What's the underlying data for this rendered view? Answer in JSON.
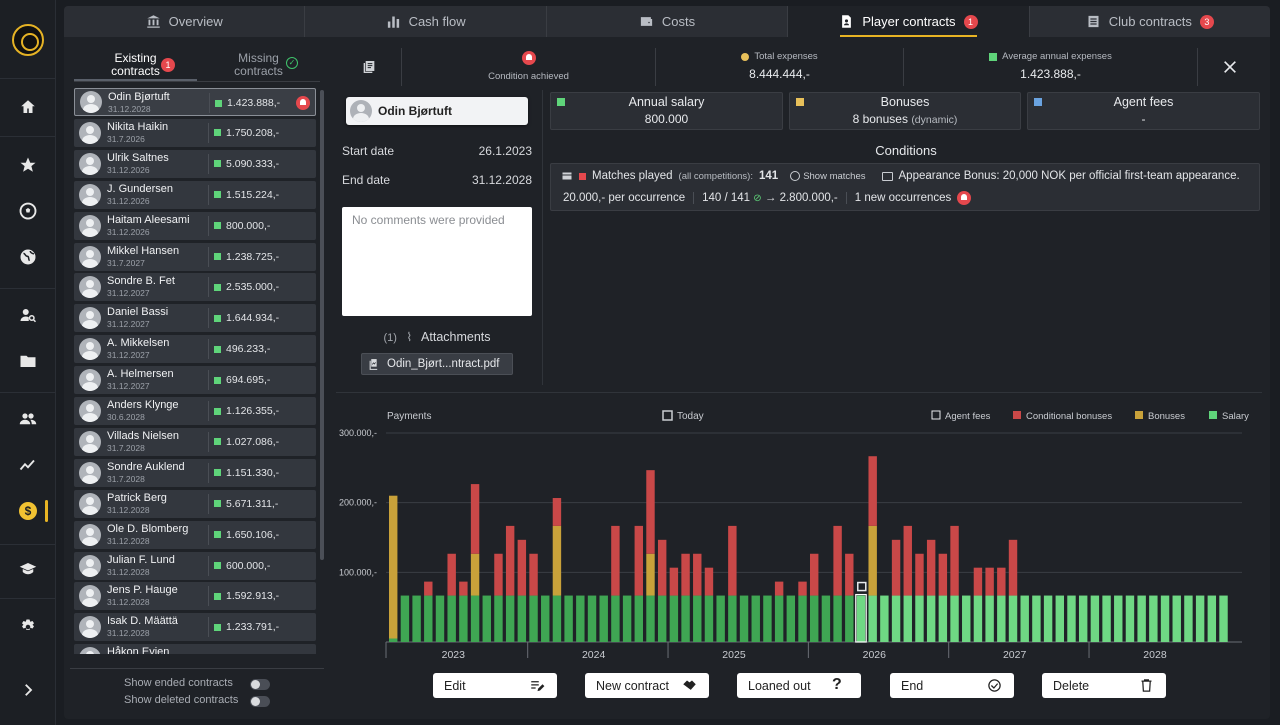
{
  "tabs": [
    {
      "label": "Overview"
    },
    {
      "label": "Cash flow"
    },
    {
      "label": "Costs"
    },
    {
      "label": "Player contracts",
      "badge": "1"
    },
    {
      "label": "Club contracts",
      "badge": "3"
    }
  ],
  "subtabs": {
    "existing": "Existing\ncontracts",
    "existing_badge": "1",
    "missing": "Missing\ncontracts"
  },
  "players": [
    {
      "name": "Odin Bjørtuft",
      "date": "31.12.2028",
      "value": "1.423.888,-"
    },
    {
      "name": "Nikita Haikin",
      "date": "31.7.2026",
      "value": "1.750.208,-"
    },
    {
      "name": "Ulrik Saltnes",
      "date": "31.12.2026",
      "value": "5.090.333,-"
    },
    {
      "name": "J. Gundersen",
      "date": "31.12.2026",
      "value": "1.515.224,-"
    },
    {
      "name": "Haitam Aleesami",
      "date": "31.12.2026",
      "value": "800.000,-"
    },
    {
      "name": "Mikkel Hansen",
      "date": "31.7.2027",
      "value": "1.238.725,-"
    },
    {
      "name": "Sondre B. Fet",
      "date": "31.12.2027",
      "value": "2.535.000,-"
    },
    {
      "name": "Daniel Bassi",
      "date": "31.12.2027",
      "value": "1.644.934,-"
    },
    {
      "name": "A. Mikkelsen",
      "date": "31.12.2027",
      "value": "496.233,-"
    },
    {
      "name": "A. Helmersen",
      "date": "31.12.2027",
      "value": "694.695,-"
    },
    {
      "name": "Anders Klynge",
      "date": "30.6.2028",
      "value": "1.126.355,-"
    },
    {
      "name": "Villads Nielsen",
      "date": "31.7.2028",
      "value": "1.027.086,-"
    },
    {
      "name": "Sondre Auklend",
      "date": "31.7.2028",
      "value": "1.151.330,-"
    },
    {
      "name": "Patrick Berg",
      "date": "31.12.2028",
      "value": "5.671.311,-"
    },
    {
      "name": "Ole D. Blomberg",
      "date": "31.12.2028",
      "value": "1.650.106,-"
    },
    {
      "name": "Julian F. Lund",
      "date": "31.12.2028",
      "value": "600.000,-"
    },
    {
      "name": "Jens P. Hauge",
      "date": "31.12.2028",
      "value": "1.592.913,-"
    },
    {
      "name": "Isak D. Määttä",
      "date": "31.12.2028",
      "value": "1.233.791,-"
    },
    {
      "name": "Håkon Evjen",
      "date": "",
      "value": ""
    }
  ],
  "toggles": {
    "ended": "Show ended contracts",
    "deleted": "Show deleted contracts"
  },
  "header": {
    "condition": "Condition achieved",
    "total_label": "Total expenses",
    "total_value": "8.444.444,-",
    "avg_label": "Average annual expenses",
    "avg_value": "1.423.888,-"
  },
  "player": {
    "name": "Odin Bjørtuft",
    "start_label": "Start date",
    "start_value": "26.1.2023",
    "end_label": "End date",
    "end_value": "31.12.2028",
    "comments": "No comments were provided",
    "attach_count": "(1)",
    "attach_label": "Attachments",
    "file": "Odin_Bjørt...ntract.pdf"
  },
  "cards": {
    "salary_label": "Annual salary",
    "salary_value": "800.000",
    "bonus_label": "Bonuses",
    "bonus_value": "8 bonuses",
    "bonus_note": "(dynamic)",
    "agent_label": "Agent fees",
    "agent_value": "-"
  },
  "conditions": {
    "title": "Conditions",
    "matches_label": "Matches played",
    "matches_note": "(all competitions):",
    "matches_value": "141",
    "show_matches": "Show matches",
    "bonus_text": "Appearance Bonus: 20,000 NOK per official first-team appearance.",
    "per_occ": "20.000,- per occurrence",
    "progress": "140 / 141",
    "payout": "2.800.000,-",
    "new_occ": "1 new occurrences"
  },
  "chart_data": {
    "type": "bar",
    "title": "Payments",
    "today_label": "Today",
    "legend": [
      "Agent fees",
      "Conditional bonuses",
      "Bonuses",
      "Salary"
    ],
    "legend_position": "top-right",
    "colors": {
      "Agent fees": "#ffffff",
      "Conditional bonuses": "#c94848",
      "Bonuses": "#c9a23a",
      "Salary": "#3fa653",
      "Salary_future": "#6fd884",
      "Today": "#e55a5a"
    },
    "ylim": [
      0,
      300000
    ],
    "yticks": [
      "100.000,-",
      "200.000,-",
      "300.000,-"
    ],
    "year_labels": [
      "2023",
      "2024",
      "2025",
      "2026",
      "2027",
      "2028"
    ],
    "today_index": 40,
    "series": [
      {
        "name": "Salary",
        "values": [
          5000,
          66667,
          66667,
          66667,
          66667,
          66667,
          66667,
          66667,
          66667,
          66667,
          66667,
          66667,
          66667,
          66667,
          66667,
          66667,
          66667,
          66667,
          66667,
          66667,
          66667,
          66667,
          66667,
          66667,
          66667,
          66667,
          66667,
          66667,
          66667,
          66667,
          66667,
          66667,
          66667,
          66667,
          66667,
          66667,
          66667,
          66667,
          66667,
          66667,
          66667,
          66667,
          66667,
          66667,
          66667,
          66667,
          66667,
          66667,
          66667,
          66667,
          66667,
          66667,
          66667,
          66667,
          66667,
          66667,
          66667,
          66667,
          66667,
          66667,
          66667,
          66667,
          66667,
          66667,
          66667,
          66667,
          66667,
          66667,
          66667,
          66667,
          66667,
          66667
        ]
      },
      {
        "name": "Bonuses",
        "values": [
          205000,
          0,
          0,
          0,
          0,
          0,
          0,
          60000,
          0,
          0,
          0,
          0,
          0,
          0,
          100000,
          0,
          0,
          0,
          0,
          0,
          0,
          0,
          60000,
          0,
          0,
          0,
          0,
          0,
          0,
          0,
          0,
          0,
          0,
          0,
          0,
          0,
          0,
          0,
          0,
          0,
          0,
          100000,
          0,
          0,
          0,
          0,
          0,
          0,
          0,
          0,
          0,
          0,
          0,
          0,
          0,
          0,
          0,
          0,
          0,
          0,
          0,
          0,
          0,
          0,
          0,
          0,
          0,
          0,
          0,
          0,
          0,
          0
        ]
      },
      {
        "name": "Conditional bonuses",
        "values": [
          0,
          0,
          0,
          20000,
          0,
          60000,
          20000,
          100000,
          0,
          60000,
          100000,
          80000,
          60000,
          0,
          40000,
          0,
          0,
          0,
          0,
          100000,
          0,
          100000,
          120000,
          80000,
          40000,
          60000,
          60000,
          40000,
          0,
          100000,
          0,
          0,
          0,
          20000,
          0,
          20000,
          60000,
          0,
          100000,
          60000,
          0,
          100000,
          0,
          80000,
          100000,
          60000,
          80000,
          60000,
          100000,
          0,
          40000,
          40000,
          40000,
          80000,
          0,
          0,
          0,
          0,
          0,
          0,
          0,
          0,
          0,
          0,
          0,
          0,
          0,
          0,
          0,
          0,
          0,
          0
        ]
      },
      {
        "name": "Agent fees",
        "values": [
          0,
          0,
          0,
          0,
          0,
          0,
          0,
          0,
          0,
          0,
          0,
          0,
          0,
          0,
          0,
          0,
          0,
          0,
          0,
          0,
          0,
          0,
          0,
          0,
          0,
          0,
          0,
          0,
          0,
          0,
          0,
          0,
          0,
          0,
          0,
          0,
          0,
          0,
          0,
          0,
          0,
          0,
          0,
          0,
          0,
          0,
          0,
          0,
          0,
          0,
          0,
          0,
          0,
          0,
          0,
          0,
          0,
          0,
          0,
          0,
          0,
          0,
          0,
          0,
          0,
          0,
          0,
          0,
          0,
          0,
          0,
          0
        ]
      }
    ]
  },
  "buttons": {
    "edit": "Edit",
    "new": "New contract",
    "loaned": "Loaned out",
    "end": "End",
    "delete": "Delete"
  }
}
